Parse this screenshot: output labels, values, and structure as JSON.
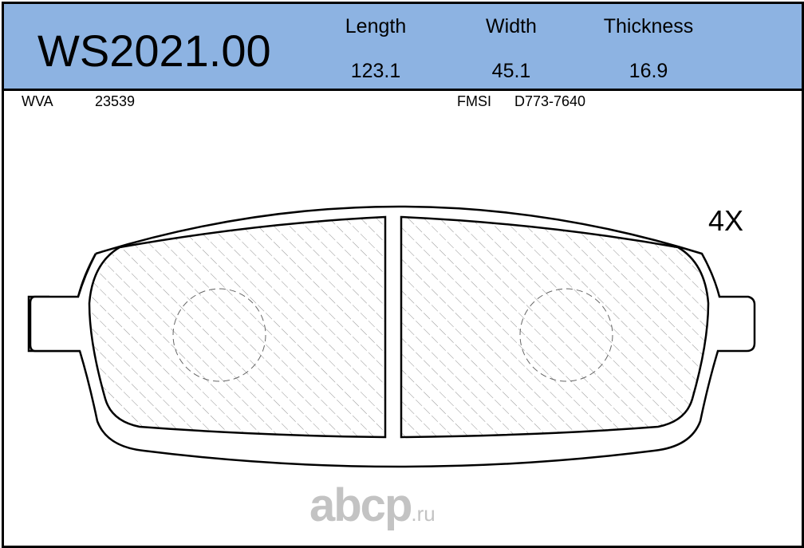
{
  "header": {
    "part_number": "WS2021.00",
    "dimensions": [
      {
        "label": "Length",
        "value": "123.1"
      },
      {
        "label": "Width",
        "value": "45.1"
      },
      {
        "label": "Thickness",
        "value": "16.9"
      }
    ],
    "background_color": "#8DB3E2"
  },
  "references": {
    "wva_label": "WVA",
    "wva_value": "23539",
    "fmsi_label": "FMSI",
    "fmsi_value": "D773-7640"
  },
  "quantity": "4X",
  "watermark": {
    "main": "abcp",
    "suffix": ".ru"
  }
}
